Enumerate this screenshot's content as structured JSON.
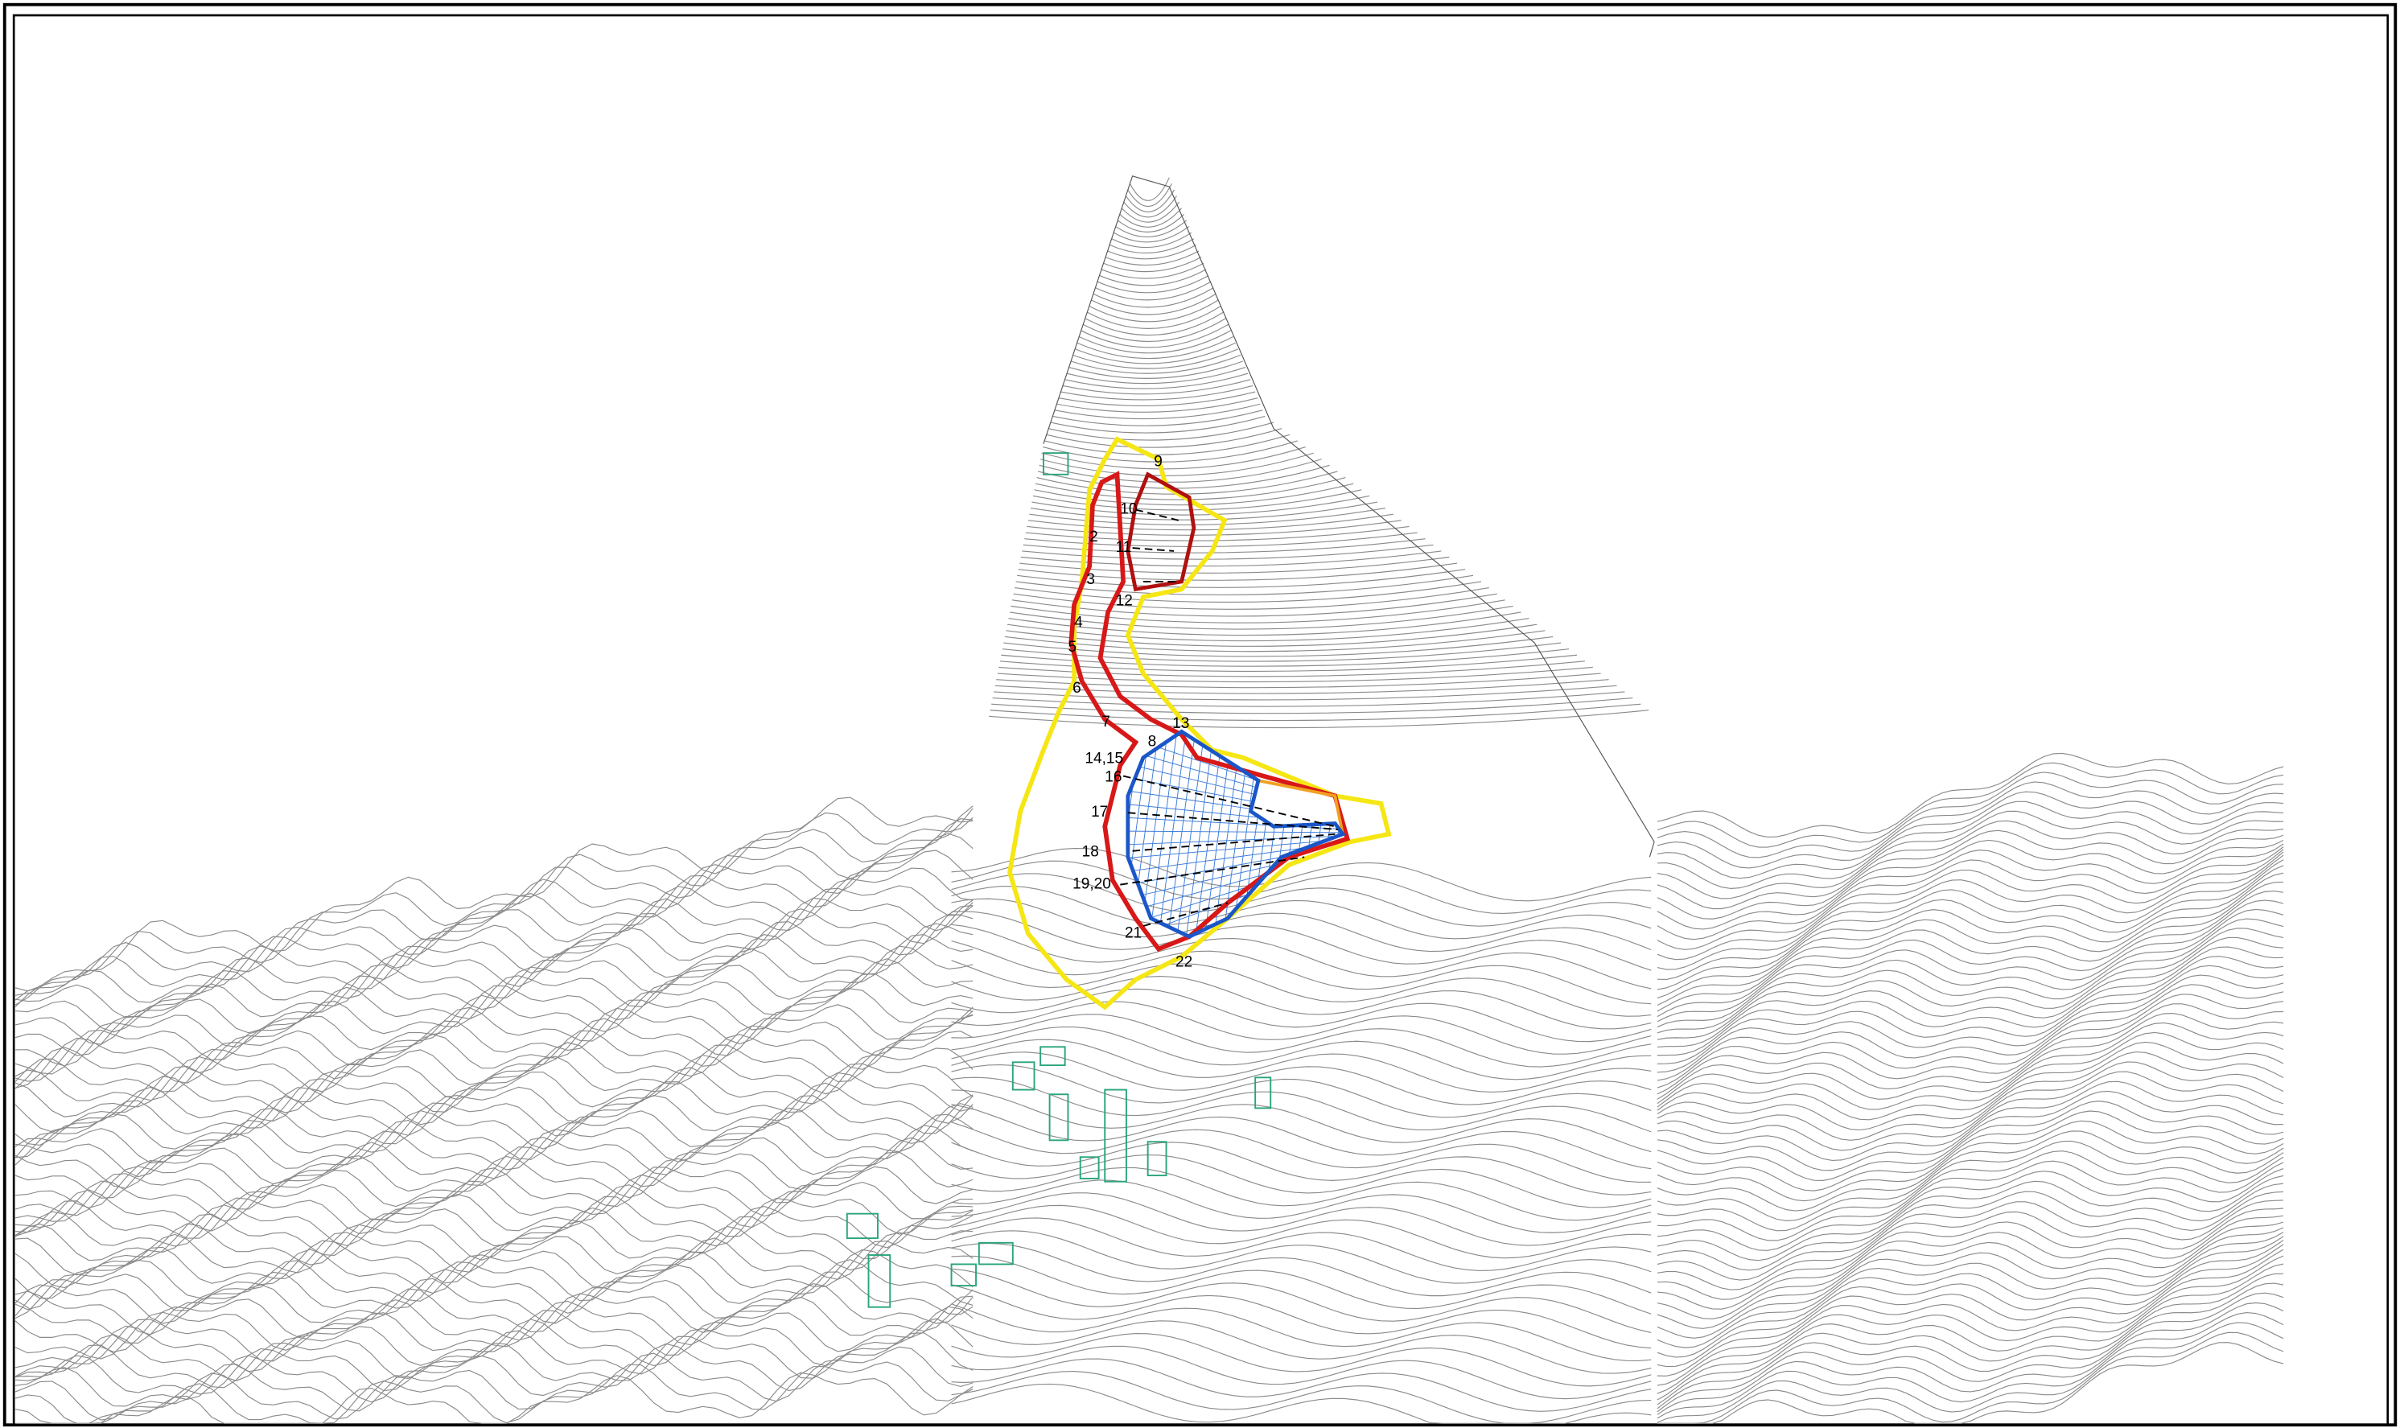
{
  "labels": [
    "9",
    "10",
    "2",
    "11",
    "3",
    "12",
    "4",
    "5",
    "6",
    "7",
    "8",
    "13",
    "14,15",
    "16",
    "17",
    "18",
    "19,20",
    "21",
    "22"
  ]
}
